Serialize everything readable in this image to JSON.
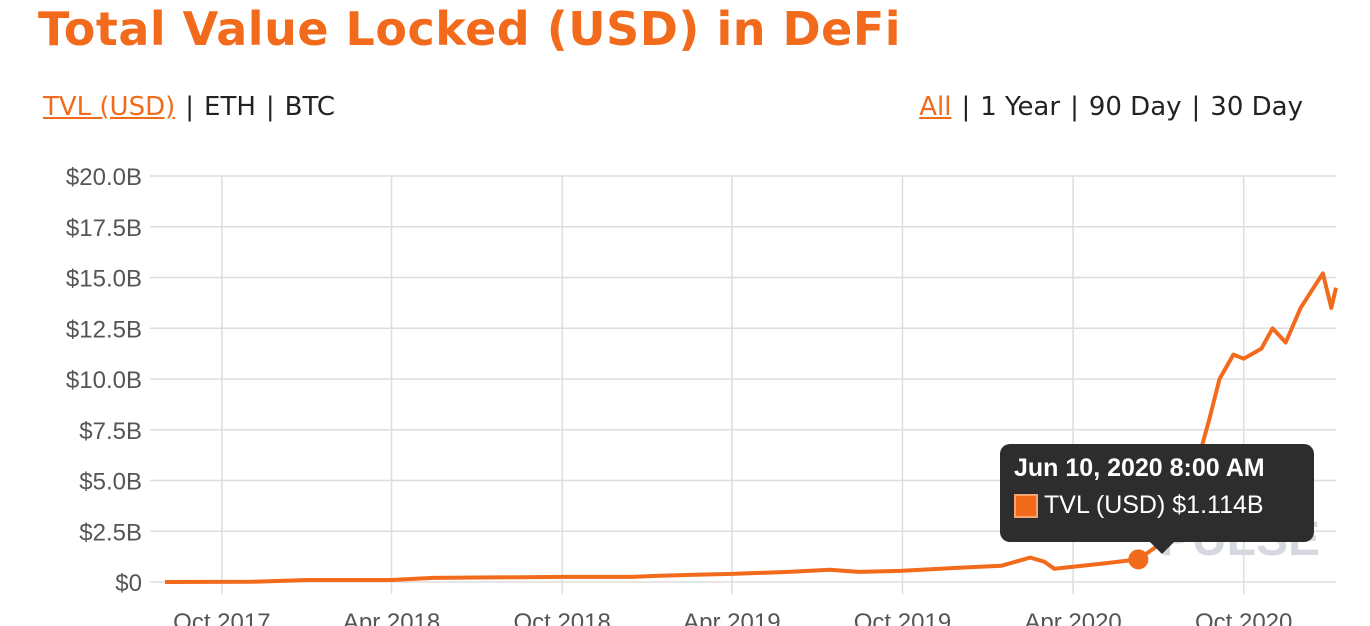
{
  "title": "Total Value Locked (USD) in DeFi",
  "metric_tabs": [
    {
      "label": "TVL (USD)",
      "active": true
    },
    {
      "label": "ETH",
      "active": false
    },
    {
      "label": "BTC",
      "active": false
    }
  ],
  "range_tabs": [
    {
      "label": "All",
      "active": true
    },
    {
      "label": "1 Year",
      "active": false
    },
    {
      "label": "90 Day",
      "active": false
    },
    {
      "label": "30 Day",
      "active": false
    }
  ],
  "colors": {
    "accent": "#f26a1b",
    "grid": "#dddddd",
    "tooltip_bg": "#2d2d2d"
  },
  "watermark": "PULSE",
  "tooltip": {
    "date": "Jun 10, 2020 8:00 AM",
    "series": "TVL (USD)",
    "value": "$1.114B"
  },
  "chart_data": {
    "type": "line",
    "title": "",
    "xlabel": "",
    "ylabel": "",
    "ylim": [
      0,
      20
    ],
    "xlim": [
      "2017-08-01",
      "2021-01-08"
    ],
    "grid": true,
    "y_ticks": [
      {
        "v": 0,
        "label": "$0"
      },
      {
        "v": 2.5,
        "label": "$2.5B"
      },
      {
        "v": 5,
        "label": "$5.0B"
      },
      {
        "v": 7.5,
        "label": "$7.5B"
      },
      {
        "v": 10,
        "label": "$10.0B"
      },
      {
        "v": 12.5,
        "label": "$12.5B"
      },
      {
        "v": 15,
        "label": "$15.0B"
      },
      {
        "v": 17.5,
        "label": "$17.5B"
      },
      {
        "v": 20,
        "label": "$20.0B"
      }
    ],
    "x_ticks": [
      {
        "d": "2017-10-01",
        "label": "Oct 2017"
      },
      {
        "d": "2018-04-01",
        "label": "Apr 2018"
      },
      {
        "d": "2018-10-01",
        "label": "Oct 2018"
      },
      {
        "d": "2019-04-01",
        "label": "Apr 2019"
      },
      {
        "d": "2019-10-01",
        "label": "Oct 2019"
      },
      {
        "d": "2020-04-01",
        "label": "Apr 2020"
      },
      {
        "d": "2020-10-01",
        "label": "Oct 2020"
      }
    ],
    "series": [
      {
        "name": "TVL (USD)",
        "color": "#f26a1b",
        "unit": "USD billions",
        "points": [
          [
            "2017-08-01",
            0.0
          ],
          [
            "2017-11-01",
            0.01
          ],
          [
            "2018-01-01",
            0.1
          ],
          [
            "2018-04-01",
            0.1
          ],
          [
            "2018-05-15",
            0.2
          ],
          [
            "2018-10-01",
            0.25
          ],
          [
            "2018-12-15",
            0.25
          ],
          [
            "2019-01-10",
            0.3
          ],
          [
            "2019-02-15",
            0.35
          ],
          [
            "2019-04-01",
            0.4
          ],
          [
            "2019-06-01",
            0.5
          ],
          [
            "2019-07-15",
            0.6
          ],
          [
            "2019-08-15",
            0.5
          ],
          [
            "2019-10-01",
            0.55
          ],
          [
            "2019-12-01",
            0.7
          ],
          [
            "2020-01-15",
            0.8
          ],
          [
            "2020-02-15",
            1.2
          ],
          [
            "2020-03-01",
            1.0
          ],
          [
            "2020-03-12",
            0.65
          ],
          [
            "2020-04-01",
            0.75
          ],
          [
            "2020-05-01",
            0.9
          ],
          [
            "2020-06-10",
            1.114
          ],
          [
            "2020-07-01",
            1.8
          ],
          [
            "2020-07-25",
            3.5
          ],
          [
            "2020-08-10",
            5.5
          ],
          [
            "2020-08-25",
            8.0
          ],
          [
            "2020-09-05",
            10.0
          ],
          [
            "2020-09-20",
            11.2
          ],
          [
            "2020-10-01",
            11.0
          ],
          [
            "2020-10-20",
            11.5
          ],
          [
            "2020-11-01",
            12.5
          ],
          [
            "2020-11-15",
            11.8
          ],
          [
            "2020-12-01",
            13.5
          ],
          [
            "2020-12-15",
            14.5
          ],
          [
            "2020-12-25",
            15.2
          ],
          [
            "2021-01-03",
            13.5
          ],
          [
            "2021-01-08",
            14.5
          ]
        ]
      }
    ],
    "highlight": {
      "date": "2020-06-10",
      "value": 1.114
    }
  }
}
